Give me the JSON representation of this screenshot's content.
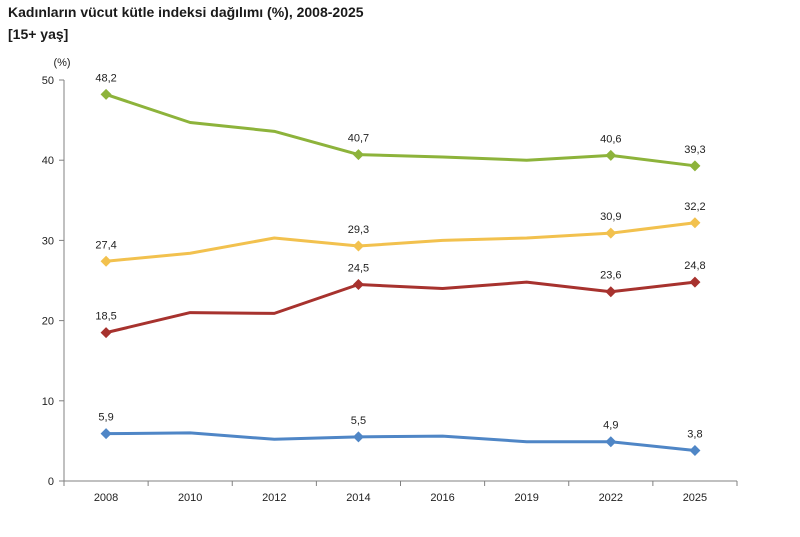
{
  "header": {
    "title": "Kadınların vücut kütle indeksi dağılımı (%), 2008-2025",
    "subtitle": "[15+ yaş]"
  },
  "chart_data": {
    "type": "line",
    "title": "Kadınların vücut kütle indeksi dağılımı (%), 2008-2025",
    "subtitle": "[15+ yaş]",
    "ylabel": "(%)",
    "xlabel": "",
    "ylim": [
      0,
      50
    ],
    "yticks": [
      0,
      10,
      20,
      30,
      40,
      50
    ],
    "grid": false,
    "categories": [
      "2008",
      "2010",
      "2012",
      "2014",
      "2016",
      "2019",
      "2022",
      "2025"
    ],
    "series": [
      {
        "color": "#8db33b",
        "values": [
          48.2,
          44.7,
          43.6,
          40.7,
          40.4,
          40.0,
          40.6,
          39.3
        ],
        "labeled": [
          48.2,
          null,
          null,
          40.7,
          null,
          null,
          40.6,
          39.3
        ]
      },
      {
        "color": "#f2c14e",
        "values": [
          27.4,
          28.4,
          30.3,
          29.3,
          30.0,
          30.3,
          30.9,
          32.2
        ],
        "labeled": [
          27.4,
          null,
          null,
          29.3,
          null,
          null,
          30.9,
          32.2
        ]
      },
      {
        "color": "#a7322e",
        "values": [
          18.5,
          21.0,
          20.9,
          24.5,
          24.0,
          24.8,
          23.6,
          24.8
        ],
        "labeled": [
          18.5,
          null,
          null,
          24.5,
          null,
          null,
          23.6,
          24.8
        ]
      },
      {
        "color": "#4f86c6",
        "values": [
          5.9,
          6.0,
          5.2,
          5.5,
          5.6,
          4.9,
          4.9,
          3.8
        ],
        "labeled": [
          5.9,
          null,
          null,
          5.5,
          null,
          null,
          4.9,
          3.8
        ]
      }
    ]
  }
}
